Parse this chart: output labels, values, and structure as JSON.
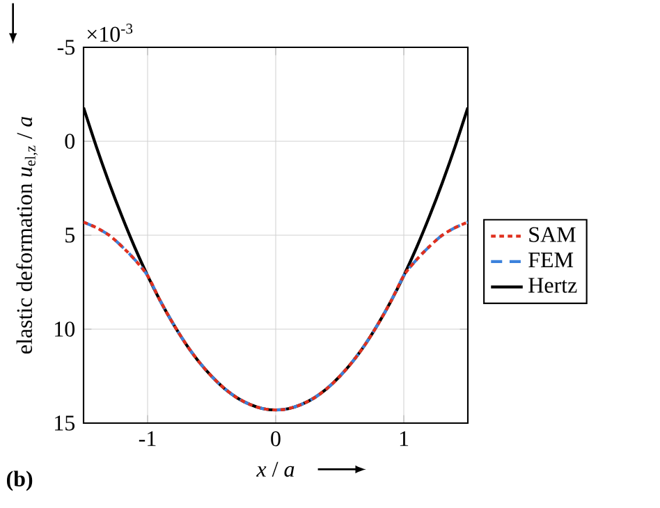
{
  "chart_data": {
    "type": "line",
    "xlabel": "*x* / *a*",
    "ylabel": "elastic deformation *u*$_{el,z}$ / *a*",
    "annotations": [
      "×10$^{-3}$",
      "(b)"
    ],
    "x": [
      -1.5,
      -1.4,
      -1.3,
      -1.2,
      -1.1,
      -1.0,
      -0.9,
      -0.8,
      -0.7,
      -0.6,
      -0.5,
      -0.4,
      -0.3,
      -0.2,
      -0.1,
      0,
      0.1,
      0.2,
      0.3,
      0.4,
      0.5,
      0.6,
      0.7,
      0.8,
      0.9,
      1.0,
      1.1,
      1.2,
      1.3,
      1.4,
      1.5
    ],
    "series": [
      {
        "name": "SAM",
        "color": "#e0301e",
        "line_style": "dotted",
        "values": [
          4.3,
          4.6,
          5.0,
          5.6,
          6.3,
          7.15,
          8.51,
          9.72,
          10.8,
          11.73,
          12.51,
          13.16,
          13.66,
          14.01,
          14.23,
          14.3,
          14.23,
          14.01,
          13.66,
          13.16,
          12.51,
          11.73,
          10.8,
          9.72,
          8.51,
          7.15,
          6.3,
          5.6,
          5.0,
          4.6,
          4.3
        ]
      },
      {
        "name": "FEM",
        "color": "#3c82dc",
        "line_style": "dashed",
        "values": [
          4.3,
          4.6,
          5.0,
          5.6,
          6.3,
          7.15,
          8.51,
          9.72,
          10.8,
          11.73,
          12.51,
          13.16,
          13.66,
          14.01,
          14.23,
          14.3,
          14.23,
          14.01,
          13.66,
          13.16,
          12.51,
          11.73,
          10.8,
          9.72,
          8.51,
          7.15,
          6.3,
          5.6,
          5.0,
          4.6,
          4.3
        ]
      },
      {
        "name": "Hertz",
        "color": "#000000",
        "line_style": "solid",
        "values": [
          -1.79,
          0.29,
          2.22,
          4.0,
          5.65,
          7.15,
          8.51,
          9.72,
          10.8,
          11.73,
          12.51,
          13.16,
          13.66,
          14.01,
          14.23,
          14.3,
          14.23,
          14.01,
          13.66,
          13.16,
          12.51,
          11.73,
          10.8,
          9.72,
          8.51,
          7.15,
          5.65,
          4.0,
          2.22,
          0.29,
          -1.79
        ]
      }
    ],
    "xlim": [
      -1.5,
      1.5
    ],
    "xticks": [
      -1,
      0,
      1
    ],
    "ylim": [
      15,
      -5
    ],
    "yticks": [
      -5,
      0,
      5,
      10,
      15
    ],
    "grid": true,
    "legend": "right"
  }
}
